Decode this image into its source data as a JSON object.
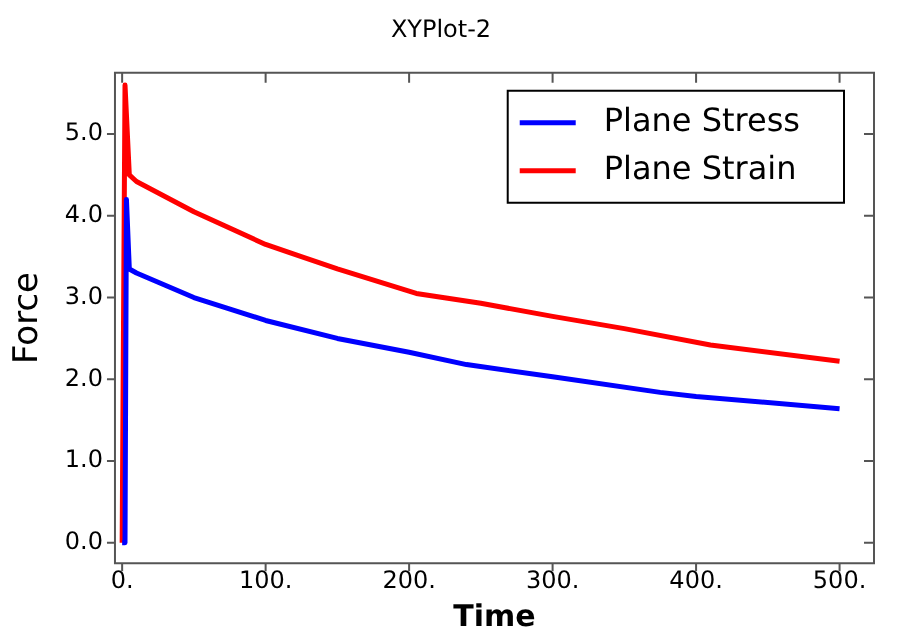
{
  "chart_data": {
    "type": "line",
    "title": "XYPlot-2",
    "xlabel": "Time",
    "ylabel": "Force",
    "xlim": [
      -5,
      524
    ],
    "ylim": [
      -0.25,
      5.75
    ],
    "xticks": [
      {
        "value": 0,
        "label": "0."
      },
      {
        "value": 100,
        "label": "100."
      },
      {
        "value": 200,
        "label": "200."
      },
      {
        "value": 300,
        "label": "300."
      },
      {
        "value": 400,
        "label": "400."
      },
      {
        "value": 500,
        "label": "500."
      }
    ],
    "yticks": [
      {
        "value": 0,
        "label": "0.0"
      },
      {
        "value": 1,
        "label": "1.0"
      },
      {
        "value": 2,
        "label": "2.0"
      },
      {
        "value": 3,
        "label": "3.0"
      },
      {
        "value": 4,
        "label": "4.0"
      },
      {
        "value": 5,
        "label": "5.0"
      }
    ],
    "grid": false,
    "legend": "top right",
    "marker": "none",
    "line_style": "solid",
    "series": [
      {
        "name": "Plane Stress",
        "color": "#0000ff",
        "x": [
          0,
          2,
          3,
          5,
          10,
          50,
          100,
          150,
          200,
          240,
          300,
          375,
          400,
          500
        ],
        "values": [
          0,
          0,
          4.2,
          3.35,
          3.3,
          3.0,
          2.72,
          2.5,
          2.33,
          2.18,
          2.03,
          1.84,
          1.79,
          1.64
        ]
      },
      {
        "name": "Plane Strain",
        "color": "#ff0000",
        "x": [
          0,
          1,
          2,
          5,
          10,
          50,
          100,
          150,
          205,
          250,
          300,
          350,
          410,
          500
        ],
        "values": [
          0,
          0,
          5.6,
          4.5,
          4.42,
          4.05,
          3.65,
          3.35,
          3.05,
          2.93,
          2.77,
          2.62,
          2.42,
          2.22
        ]
      }
    ]
  }
}
